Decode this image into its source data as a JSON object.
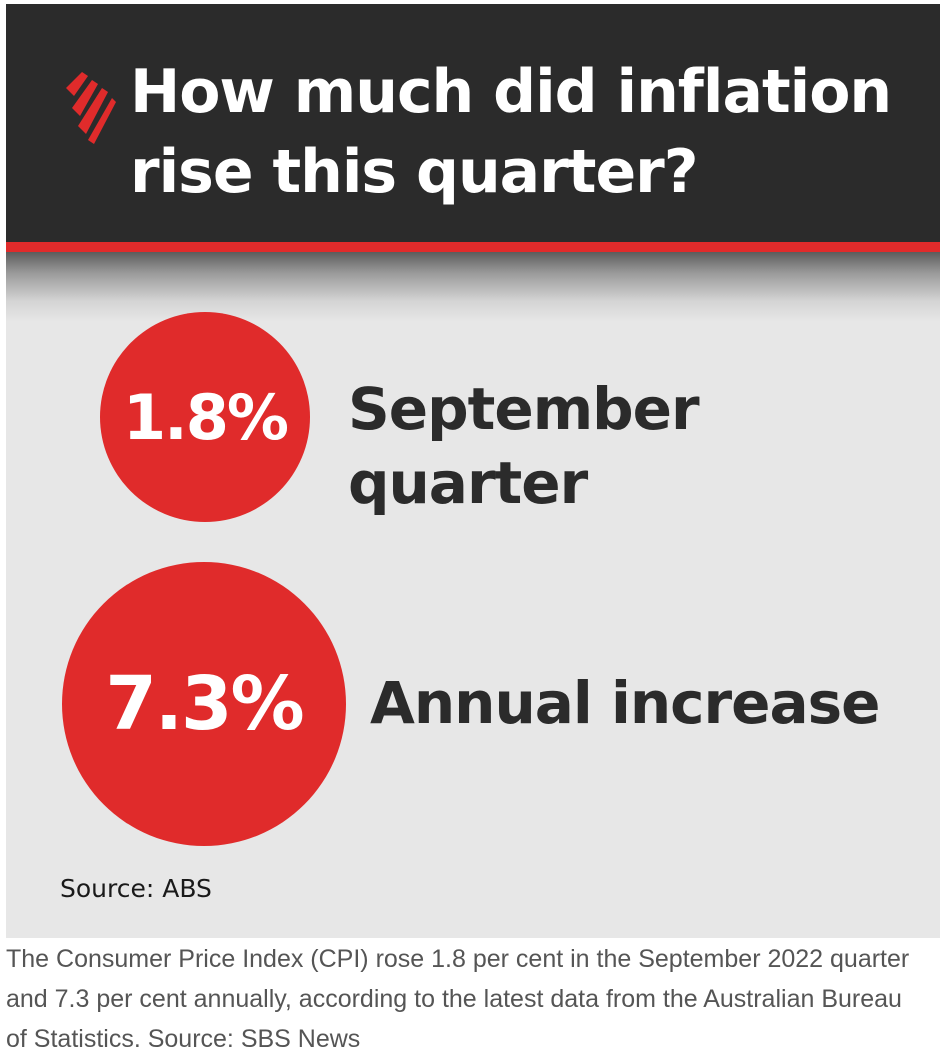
{
  "graphic": {
    "headline": "How much did inflation rise this quarter?",
    "logo_icon": "sbs-logo-icon",
    "colors": {
      "header_background": "#2b2b2b",
      "accent_red": "#e02b2b",
      "panel_background": "#e7e7e7",
      "label_text": "#2b2b2b"
    },
    "stats": [
      {
        "value": "1.8%",
        "label": "September quarter"
      },
      {
        "value": "7.3%",
        "label": "Annual increase"
      }
    ],
    "source": "Source: ABS"
  },
  "caption": "The Consumer Price Index (CPI) rose 1.8 per cent in the September 2022 quarter and 7.3 per cent annually, according to the latest data from the Australian Bureau of Statistics. Source: SBS News"
}
